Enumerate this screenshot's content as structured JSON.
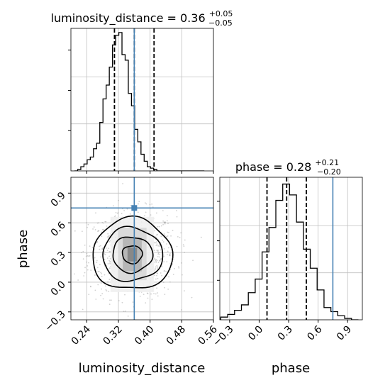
{
  "chart_data": {
    "type": "corner",
    "parameters": [
      "luminosity_distance",
      "phase"
    ],
    "truths": {
      "luminosity_distance": 0.36,
      "phase": 0.75
    },
    "colors": {
      "truth": "#4682b4",
      "hist": "#000000",
      "grid": "#c0c0c0",
      "scatter": "#9a9a9a"
    },
    "grid": true,
    "titles": [
      {
        "param": "luminosity_distance",
        "text": "luminosity_distance = 0.36",
        "sup": "+0.05",
        "sub": "−0.05"
      },
      {
        "param": "phase",
        "text": "phase = 0.28",
        "sup": "+0.21",
        "sub": "−0.20"
      }
    ],
    "marginals": {
      "luminosity_distance": {
        "range": [
          0.2,
          0.56
        ],
        "quantiles": [
          0.31,
          0.36,
          0.41
        ],
        "bin_edges": [
          0.209,
          0.217,
          0.225,
          0.233,
          0.241,
          0.249,
          0.257,
          0.265,
          0.273,
          0.281,
          0.289,
          0.297,
          0.305,
          0.313,
          0.321,
          0.329,
          0.337,
          0.345,
          0.353,
          0.361,
          0.369,
          0.377,
          0.385,
          0.393,
          0.401,
          0.409,
          0.417,
          0.425,
          0.433,
          0.441,
          0.449,
          0.457,
          0.465,
          0.473,
          0.481,
          0.489,
          0.497,
          0.505,
          0.513,
          0.521,
          0.529,
          0.537
        ],
        "counts": [
          0.0,
          0.01,
          0.03,
          0.05,
          0.08,
          0.1,
          0.16,
          0.2,
          0.35,
          0.52,
          0.62,
          0.75,
          0.91,
          0.98,
          1.0,
          0.84,
          0.8,
          0.56,
          0.47,
          0.3,
          0.21,
          0.12,
          0.07,
          0.03,
          0.02,
          0.01,
          0.0,
          0.0,
          0.0,
          0.0,
          0.0,
          0.0,
          0.0,
          0.0,
          0.0,
          0.0,
          0.0,
          0.0,
          0.0,
          0.0,
          0.0
        ],
        "ylim": [
          0,
          1.03
        ]
      },
      "phase": {
        "range": [
          -0.4,
          1.05
        ],
        "quantiles": [
          0.08,
          0.28,
          0.48
        ],
        "bin_edges": [
          -0.39,
          -0.32,
          -0.25,
          -0.18,
          -0.11,
          -0.04,
          0.03,
          0.1,
          0.17,
          0.24,
          0.31,
          0.38,
          0.45,
          0.52,
          0.59,
          0.66,
          0.73,
          0.8,
          0.87,
          0.94,
          1.01
        ],
        "counts": [
          0.02,
          0.04,
          0.07,
          0.11,
          0.2,
          0.3,
          0.5,
          0.68,
          0.88,
          1.0,
          0.92,
          0.72,
          0.52,
          0.38,
          0.22,
          0.09,
          0.06,
          0.03,
          0.01,
          0.0
        ],
        "ylim": [
          0,
          1.05
        ]
      }
    },
    "joint": {
      "x_param": "luminosity_distance",
      "y_param": "phase",
      "xlim": [
        0.2,
        0.56
      ],
      "ylim": [
        -0.38,
        1.06
      ],
      "center": [
        0.355,
        0.28
      ],
      "sigma": [
        0.048,
        0.19
      ],
      "contour_levels_sigma": [
        0.5,
        1.0,
        1.5,
        2.0
      ],
      "shading": [
        {
          "x": [
            0.343,
            0.367
          ],
          "y": [
            0.21,
            0.35
          ],
          "level": 0.62
        },
        {
          "x": [
            0.331,
            0.379
          ],
          "y": [
            0.11,
            0.45
          ],
          "level": 0.38
        },
        {
          "x": [
            0.319,
            0.391
          ],
          "y": [
            0.02,
            0.55
          ],
          "level": 0.2
        },
        {
          "x": [
            0.3,
            0.41
          ],
          "y": [
            -0.1,
            0.66
          ],
          "level": 0.08
        }
      ]
    },
    "axes": {
      "luminosity_distance": {
        "label": "luminosity_distance",
        "ticks": [
          0.24,
          0.32,
          0.4,
          0.48,
          0.56
        ],
        "tick_labels": [
          "0.24",
          "0.32",
          "0.40",
          "0.48",
          "0.56"
        ]
      },
      "phase": {
        "label": "phase",
        "ticks": [
          -0.3,
          0.0,
          0.3,
          0.6,
          0.9
        ],
        "tick_labels": [
          "−0.3",
          "0.0",
          "0.3",
          "0.6",
          "0.9"
        ]
      }
    }
  }
}
